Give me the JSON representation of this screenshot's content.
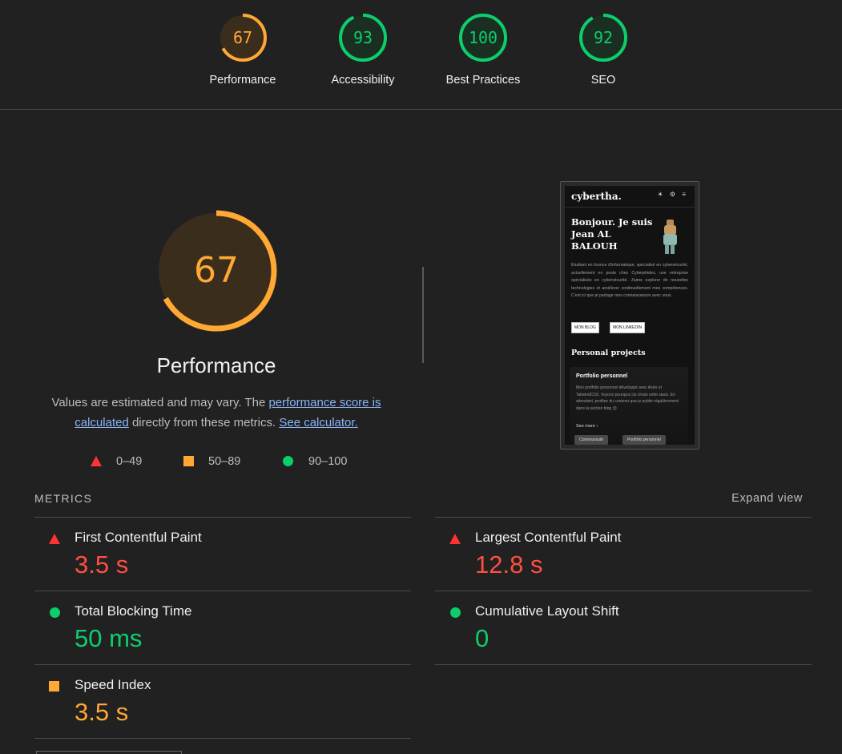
{
  "colors": {
    "fail": "#ff4e42",
    "average": "#ffa833",
    "pass": "#0cce6b",
    "link": "#8ab4f8",
    "background": "#212121"
  },
  "categories": [
    {
      "label": "Performance",
      "score": 67,
      "status": "average"
    },
    {
      "label": "Accessibility",
      "score": 93,
      "status": "pass"
    },
    {
      "label": "Best Practices",
      "score": 100,
      "status": "pass"
    },
    {
      "label": "SEO",
      "score": 92,
      "status": "pass"
    }
  ],
  "performance": {
    "score": 67,
    "title": "Performance",
    "desc_pre": "Values are estimated and may vary. The ",
    "desc_link1": "performance score is calculated",
    "desc_mid": " directly from these metrics. ",
    "desc_link2": "See calculator."
  },
  "legend": [
    {
      "icon": "triangle-icon",
      "range": "0–49"
    },
    {
      "icon": "square-icon",
      "range": "50–89"
    },
    {
      "icon": "circle-icon",
      "range": "90–100"
    }
  ],
  "screenshot": {
    "logo": "cybertha.",
    "icons": "☀ ⚙ ≡",
    "greeting": "Bonjour. Je suis Jean AL BALOUH",
    "bio": "Étudiant en licence d'informatique, spécialisé en cybersécurité, actuellement en poste chez Cyberphides, une entreprise spécialisée en cybersécurité. J'aime explorer de nouvelles technologies et améliorer continuellement mes compétences. C'est ici que je partage mes connaissances avec vous.",
    "btn_blog": "MON BLOG",
    "btn_linkedin": "MON LINKEDIN",
    "section": "Personal projects",
    "card_title": "Portfolio personnel",
    "card_text": "Mon portfolio personnel développé avec Astro et TailwindCSS. Voyons pourquoi j'ai choisi cette stack. En attendant, profitez du contenu que je publie régulièrement dans la section blog 😊",
    "see_more": "See more ›",
    "chip1": "Communauté",
    "chip2": "Portfolio personnel"
  },
  "metrics": {
    "heading": "METRICS",
    "expand": "Expand view",
    "items": [
      {
        "label": "First Contentful Paint",
        "value": "3.5 s",
        "status": "fail"
      },
      {
        "label": "Largest Contentful Paint",
        "value": "12.8 s",
        "status": "fail"
      },
      {
        "label": "Total Blocking Time",
        "value": "50 ms",
        "status": "pass"
      },
      {
        "label": "Cumulative Layout Shift",
        "value": "0",
        "status": "pass"
      },
      {
        "label": "Speed Index",
        "value": "3.5 s",
        "status": "average"
      }
    ]
  }
}
